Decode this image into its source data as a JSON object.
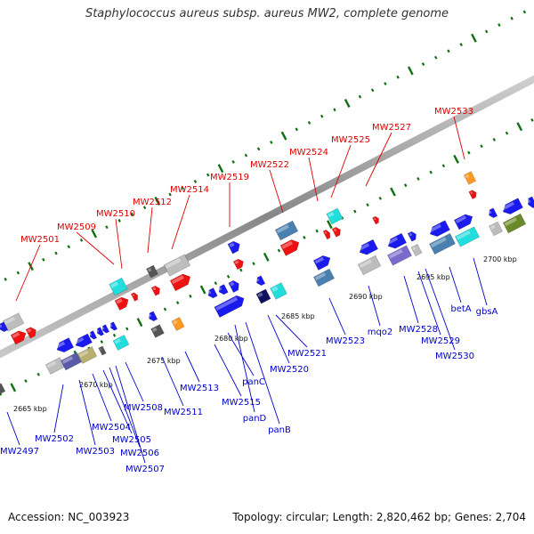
{
  "title": "Staphylococcus aureus subsp. aureus MW2, complete genome",
  "footer": {
    "accession": "Accession: NC_003923",
    "summary": "Topology: circular; Length: 2,820,462 bp; Genes: 2,704"
  },
  "colors": {
    "red": "#ee1111",
    "blue": "#1a1aee",
    "cyan": "#22dddd",
    "steel": "#4a80b0",
    "gray": "#bdbdbd",
    "darkgray": "#555555",
    "orange": "#ff9922",
    "navy": "#101060",
    "slate": "#5a5aa8",
    "olive": "#6a8a2a",
    "khaki": "#b8b070",
    "lavender": "#7a6acc",
    "label_red": "#dd0000",
    "label_blue": "#0000cc",
    "tick_green": "#107010"
  },
  "kbp_ticks": [
    "2665 kbp",
    "2670 kbp",
    "2675 kbp",
    "2680 kbp",
    "2685 kbp",
    "2690 kbp",
    "2695 kbp",
    "2700 kbp"
  ],
  "top_labels": [
    "MW2501",
    "MW2509",
    "MW2510",
    "MW2512",
    "MW2514",
    "MW2519",
    "MW2522",
    "MW2524",
    "MW2525",
    "MW2527",
    "MW2533"
  ],
  "bottom_labels": [
    "MW2497",
    "MW2502",
    "MW2503",
    "MW2504",
    "MW2505",
    "MW2506",
    "MW2507",
    "MW2508",
    "MW2511",
    "MW2513",
    "MW2515",
    "panC",
    "panD",
    "panB",
    "MW2520",
    "MW2521",
    "MW2523",
    "mqo2",
    "MW2528",
    "MW2529",
    "MW2530",
    "betA",
    "gbsA"
  ]
}
